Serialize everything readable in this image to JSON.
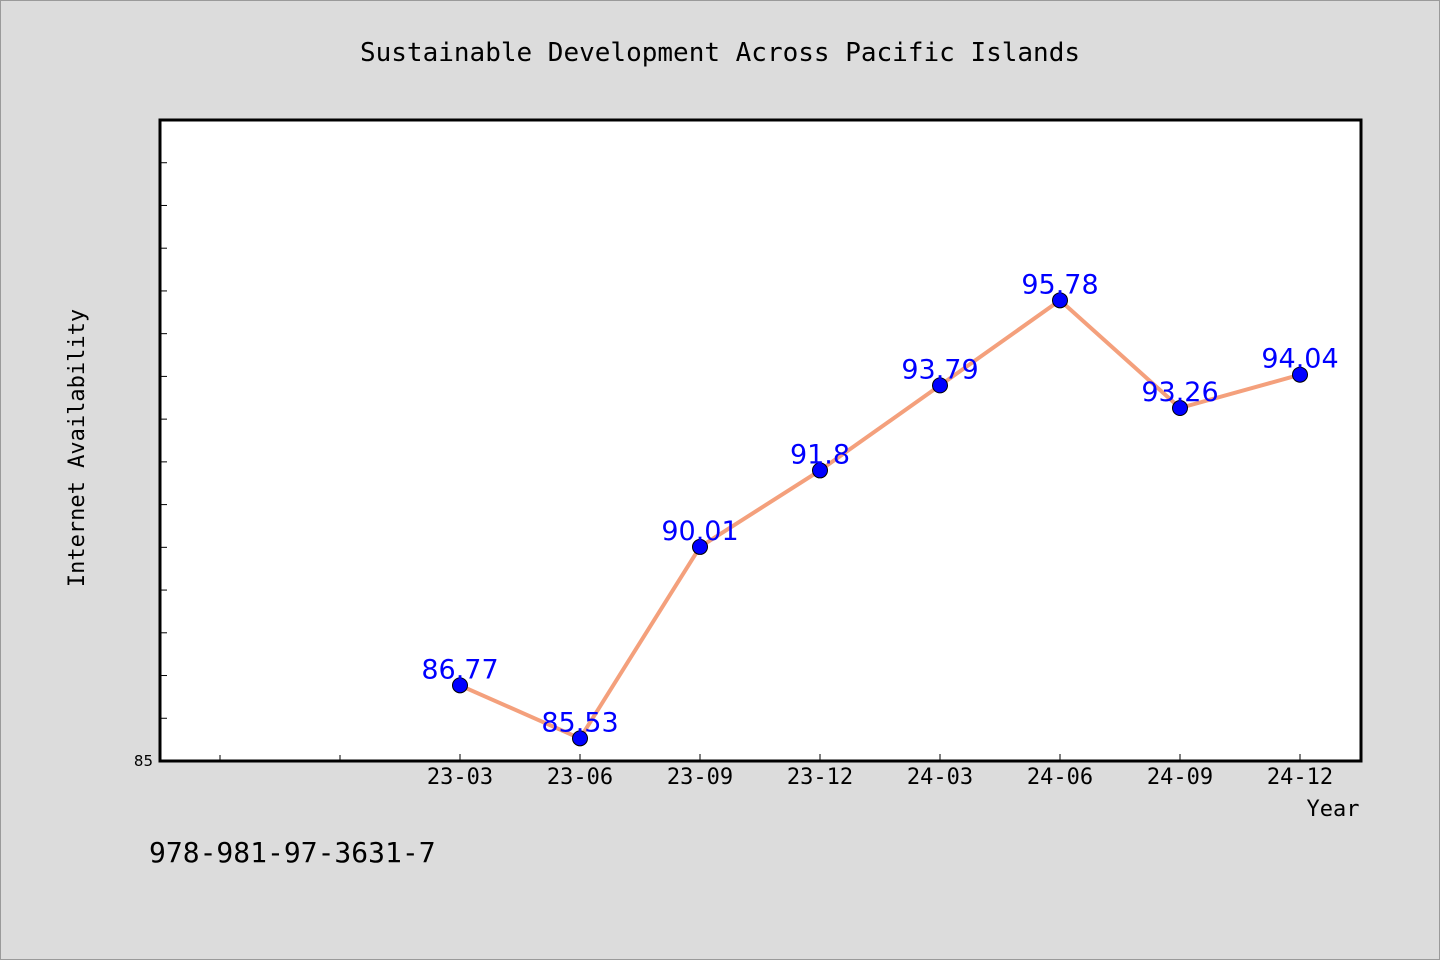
{
  "chart_data": {
    "type": "line",
    "title": "Sustainable Development Across Pacific Islands",
    "xlabel": "Year",
    "ylabel": "Internet Availability",
    "categories": [
      "23-03",
      "23-06",
      "23-09",
      "23-12",
      "24-03",
      "24-06",
      "24-09",
      "24-12"
    ],
    "values": [
      86.77,
      85.53,
      90.01,
      91.8,
      93.79,
      95.78,
      93.26,
      94.04
    ],
    "data_labels": [
      "86.77",
      "85.53",
      "90.01",
      "91.8",
      "93.79",
      "95.78",
      "93.26",
      "94.04"
    ],
    "ylim": [
      85,
      100
    ],
    "y_tick_labels": [
      "85"
    ],
    "line_color": "#f4a07c",
    "marker_color": "#0000ff",
    "label_color": "#0000ff",
    "grid": false,
    "legend": "none"
  },
  "footer_text": "978-981-97-3631-7"
}
